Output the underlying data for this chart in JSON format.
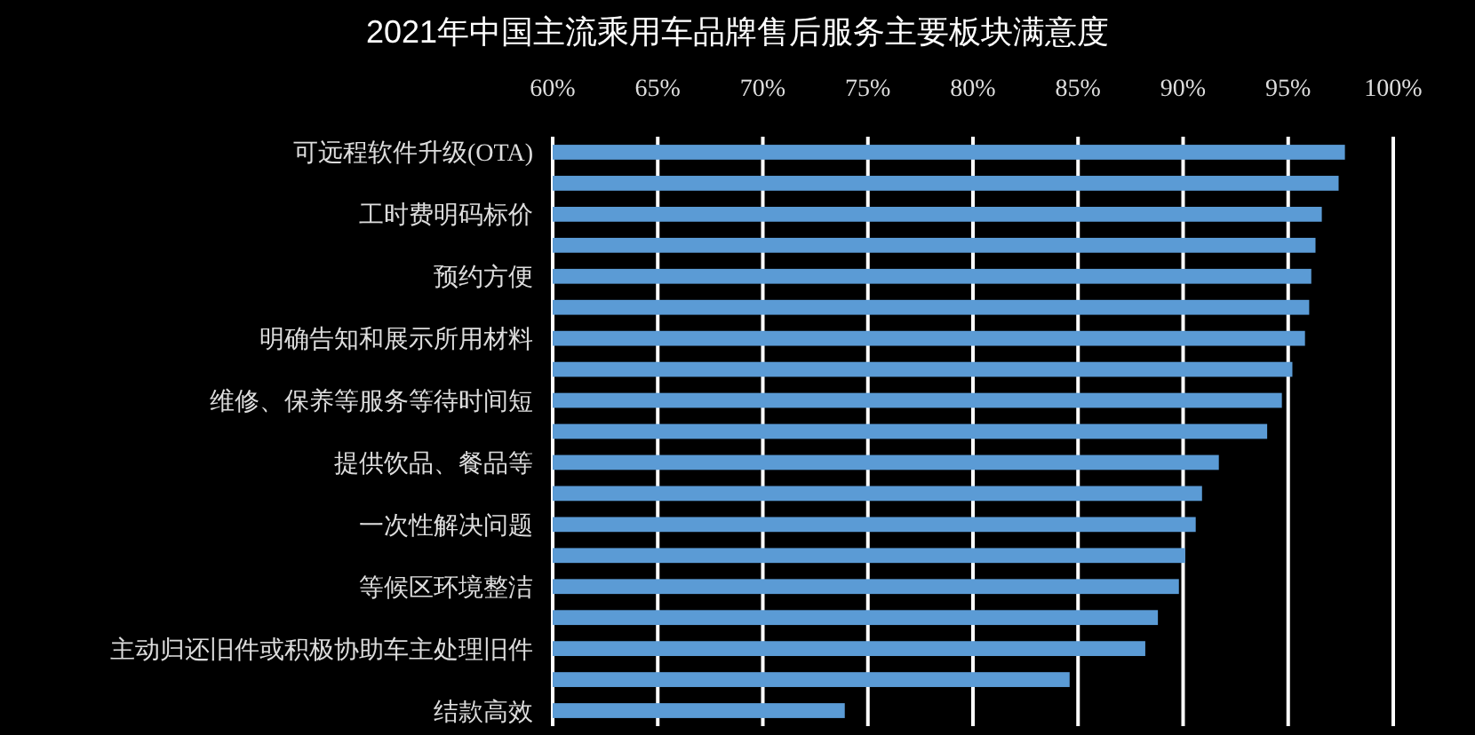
{
  "chart_data": {
    "type": "bar",
    "orientation": "horizontal",
    "title": "2021年中国主流乘用车品牌售后服务主要板块满意度",
    "categories": [
      "可远程软件升级(OTA)",
      null,
      "工时费明码标价",
      null,
      "预约方便",
      null,
      "明确告知和展示所用材料",
      null,
      "维修、保养等服务等待时间短",
      null,
      "提供饮品、餐品等",
      null,
      "一次性解决问题",
      null,
      "等候区环境整洁",
      null,
      "主动归还旧件或积极协助车主处理旧件",
      null,
      "结款高效"
    ],
    "values": [
      97.7,
      97.4,
      96.6,
      96.3,
      96.1,
      96.0,
      95.8,
      95.2,
      94.7,
      94.0,
      91.7,
      90.9,
      90.6,
      90.1,
      89.8,
      88.8,
      88.2,
      84.6,
      73.9
    ],
    "color": "#5b9bd5",
    "xlim": [
      60,
      100
    ],
    "xticks": [
      {
        "value": 60,
        "label": "60%"
      },
      {
        "value": 65,
        "label": "65%"
      },
      {
        "value": 70,
        "label": "70%"
      },
      {
        "value": 75,
        "label": "75%"
      },
      {
        "value": 80,
        "label": "80%"
      },
      {
        "value": 85,
        "label": "85%"
      },
      {
        "value": 90,
        "label": "90%"
      },
      {
        "value": 95,
        "label": "95%"
      },
      {
        "value": 100,
        "label": "100%"
      }
    ],
    "grid": "x"
  }
}
